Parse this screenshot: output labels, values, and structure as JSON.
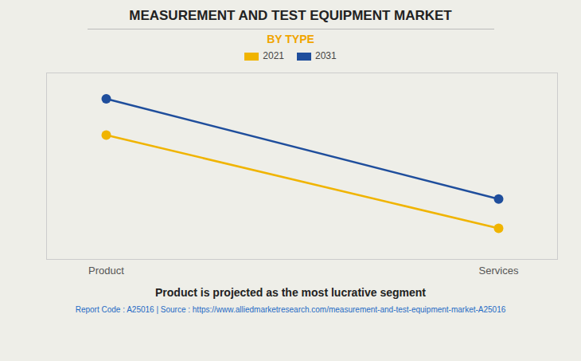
{
  "chart_data": {
    "type": "line",
    "title": "MEASUREMENT AND TEST EQUIPMENT MARKET",
    "subtitle": "BY TYPE",
    "caption": "Product is projected as the most lucrative segment",
    "footer": "Report Code : A25016  |  Source : https://www.alliedmarketresearch.com/measurement-and-test-equipment-market-A25016",
    "categories": [
      "Product",
      "Services"
    ],
    "series": [
      {
        "name": "2021",
        "color": "#F0B400",
        "values": [
          0.72,
          0.18
        ],
        "marker": "circle"
      },
      {
        "name": "2031",
        "color": "#1F4E9C",
        "values": [
          0.93,
          0.35
        ],
        "marker": "circle"
      }
    ],
    "ylim": [
      0.0,
      1.08
    ],
    "grid": false,
    "legend": "top",
    "tick_labels": "x"
  }
}
